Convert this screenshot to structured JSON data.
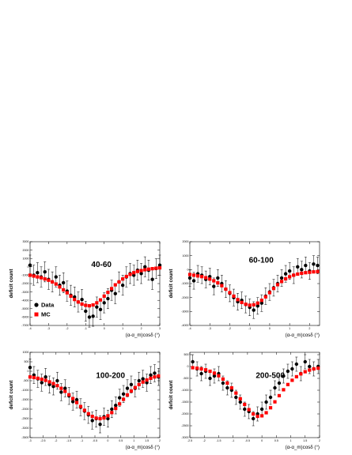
{
  "chart_data": [
    {
      "type": "scatter",
      "title": "40-60",
      "ylabel": "deficit count",
      "xlabel": "(α-α_m)cosδ (°)",
      "xlim": [
        -4,
        3
      ],
      "ylim": [
        -7000,
        3000
      ],
      "xticks": [
        -4,
        -3,
        -2,
        -1,
        0,
        1,
        2,
        3
      ],
      "yticks": [
        3000,
        2000,
        1000,
        0,
        -1000,
        -2000,
        -3000,
        -4000,
        -5000,
        -6000,
        -7000
      ],
      "legend": {
        "placement": "bottom-left",
        "entries": [
          "Data",
          "MC"
        ]
      },
      "series": [
        {
          "name": "Data",
          "color": "#000000",
          "marker": "circle",
          "x": [
            -4.0,
            -3.8,
            -3.6,
            -3.4,
            -3.2,
            -3.0,
            -2.8,
            -2.6,
            -2.4,
            -2.2,
            -2.0,
            -1.8,
            -1.6,
            -1.4,
            -1.2,
            -1.0,
            -0.8,
            -0.6,
            -0.4,
            -0.2,
            0.0,
            0.2,
            0.4,
            0.6,
            0.8,
            1.0,
            1.2,
            1.4,
            1.6,
            1.8,
            2.0,
            2.2,
            2.4,
            2.6,
            2.8,
            3.0
          ],
          "y": [
            200,
            -1000,
            -700,
            -1200,
            -600,
            -1500,
            -1800,
            -1200,
            -2200,
            -1900,
            -2900,
            -3400,
            -3600,
            -4200,
            -3900,
            -5300,
            -6000,
            -5900,
            -4800,
            -5100,
            -4300,
            -3800,
            -2800,
            -3200,
            -1800,
            -2200,
            -1200,
            -800,
            -1000,
            -400,
            -800,
            0,
            -400,
            -1500,
            -200,
            200
          ],
          "err": [
            1200,
            1200,
            1200,
            1200,
            1200,
            1200,
            1200,
            1200,
            1200,
            1200,
            1200,
            1200,
            1200,
            1200,
            1200,
            1200,
            1200,
            1200,
            1200,
            1200,
            1200,
            1200,
            1200,
            1200,
            1200,
            1200,
            1200,
            1200,
            1200,
            1200,
            1200,
            1200,
            1200,
            1200,
            1200,
            1200
          ]
        },
        {
          "name": "MC",
          "color": "#ff0000",
          "marker": "square",
          "x": [
            -4.0,
            -3.8,
            -3.6,
            -3.4,
            -3.2,
            -3.0,
            -2.8,
            -2.6,
            -2.4,
            -2.2,
            -2.0,
            -1.8,
            -1.6,
            -1.4,
            -1.2,
            -1.0,
            -0.8,
            -0.6,
            -0.4,
            -0.2,
            0.0,
            0.2,
            0.4,
            0.6,
            0.8,
            1.0,
            1.2,
            1.4,
            1.6,
            1.8,
            2.0,
            2.2,
            2.4,
            2.6,
            2.8,
            3.0
          ],
          "y": [
            -1000,
            -1100,
            -1200,
            -1300,
            -1450,
            -1600,
            -1800,
            -2050,
            -2400,
            -2750,
            -3100,
            -3500,
            -3900,
            -4200,
            -4450,
            -4600,
            -4650,
            -4550,
            -4300,
            -3950,
            -3500,
            -3050,
            -2600,
            -2150,
            -1800,
            -1450,
            -1150,
            -900,
            -700,
            -550,
            -450,
            -350,
            -280,
            -220,
            -170,
            -120
          ]
        }
      ]
    },
    {
      "type": "scatter",
      "title": "60-100",
      "ylabel": "deficit count",
      "xlabel": "(α-α_m)cosδ (°)",
      "xlim": [
        -4,
        2.5
      ],
      "ylim": [
        -4000,
        2000
      ],
      "xticks": [
        -4,
        -3,
        -2,
        -1,
        0,
        1,
        2
      ],
      "yticks": [
        2000,
        1000,
        0,
        -1000,
        -2000,
        -3000,
        -4000
      ],
      "series": [
        {
          "name": "Data",
          "color": "#000000",
          "marker": "circle",
          "x": [
            -4.0,
            -3.8,
            -3.6,
            -3.4,
            -3.2,
            -3.0,
            -2.8,
            -2.6,
            -2.4,
            -2.2,
            -2.0,
            -1.8,
            -1.6,
            -1.4,
            -1.2,
            -1.0,
            -0.8,
            -0.6,
            -0.4,
            -0.2,
            0.0,
            0.2,
            0.4,
            0.6,
            0.8,
            1.0,
            1.2,
            1.4,
            1.6,
            1.8,
            2.0,
            2.2,
            2.4
          ],
          "y": [
            -600,
            -800,
            -300,
            -400,
            -700,
            -500,
            -1200,
            -600,
            -1000,
            -1400,
            -1700,
            -2000,
            -2300,
            -2200,
            -2500,
            -2700,
            -2900,
            -2600,
            -2400,
            -1900,
            -1600,
            -1300,
            -1000,
            -600,
            -300,
            -100,
            -400,
            200,
            0,
            300,
            -100,
            400,
            300
          ],
          "err": [
            600,
            600,
            600,
            600,
            600,
            600,
            600,
            600,
            600,
            600,
            600,
            600,
            600,
            600,
            600,
            600,
            600,
            600,
            600,
            600,
            600,
            600,
            600,
            600,
            600,
            600,
            600,
            600,
            600,
            600,
            600,
            600,
            600
          ]
        },
        {
          "name": "MC",
          "color": "#ff0000",
          "marker": "square",
          "x": [
            -4.0,
            -3.8,
            -3.6,
            -3.4,
            -3.2,
            -3.0,
            -2.8,
            -2.6,
            -2.4,
            -2.2,
            -2.0,
            -1.8,
            -1.6,
            -1.4,
            -1.2,
            -1.0,
            -0.8,
            -0.6,
            -0.4,
            -0.2,
            0.0,
            0.2,
            0.4,
            0.6,
            0.8,
            1.0,
            1.2,
            1.4,
            1.6,
            1.8,
            2.0,
            2.2,
            2.4
          ],
          "y": [
            -350,
            -400,
            -450,
            -500,
            -580,
            -680,
            -800,
            -950,
            -1150,
            -1400,
            -1650,
            -1900,
            -2150,
            -2350,
            -2480,
            -2550,
            -2520,
            -2400,
            -2200,
            -1950,
            -1650,
            -1350,
            -1080,
            -850,
            -660,
            -510,
            -400,
            -320,
            -260,
            -220,
            -190,
            -160,
            -140
          ]
        }
      ]
    },
    {
      "type": "scatter",
      "title": "100-200",
      "ylabel": "deficit count",
      "xlabel": "(α-α_m)cosδ (°)",
      "xlim": [
        -3,
        2
      ],
      "ylim": [
        -3500,
        1000
      ],
      "xticks": [
        -3,
        -2.5,
        -2,
        -1.5,
        -1,
        -0.5,
        0,
        0.5,
        1,
        1.5,
        2
      ],
      "yticks": [
        1000,
        500,
        0,
        -500,
        -1000,
        -1500,
        -2000,
        -2500,
        -3000,
        -3500
      ],
      "series": [
        {
          "name": "Data",
          "color": "#000000",
          "marker": "circle",
          "x": [
            -3.0,
            -2.85,
            -2.7,
            -2.55,
            -2.4,
            -2.25,
            -2.1,
            -1.95,
            -1.8,
            -1.65,
            -1.5,
            -1.35,
            -1.2,
            -1.05,
            -0.9,
            -0.75,
            -0.6,
            -0.45,
            -0.3,
            -0.15,
            0.0,
            0.15,
            0.3,
            0.45,
            0.6,
            0.75,
            0.9,
            1.05,
            1.2,
            1.35,
            1.5,
            1.65,
            1.8,
            1.95
          ],
          "y": [
            200,
            -200,
            -400,
            -600,
            -300,
            -700,
            -800,
            -500,
            -1100,
            -900,
            -1300,
            -1600,
            -1500,
            -1900,
            -2100,
            -2300,
            -2600,
            -2500,
            -2800,
            -2400,
            -2500,
            -2000,
            -1800,
            -1400,
            -1200,
            -900,
            -700,
            -900,
            -500,
            -400,
            -600,
            -200,
            -100,
            -300
          ],
          "err": [
            450,
            450,
            450,
            450,
            450,
            450,
            450,
            450,
            450,
            450,
            450,
            450,
            450,
            450,
            450,
            450,
            450,
            450,
            450,
            450,
            450,
            450,
            450,
            450,
            450,
            450,
            450,
            450,
            450,
            450,
            450,
            450,
            450,
            450
          ]
        },
        {
          "name": "MC",
          "color": "#ff0000",
          "marker": "square",
          "x": [
            -3.0,
            -2.85,
            -2.7,
            -2.55,
            -2.4,
            -2.25,
            -2.1,
            -1.95,
            -1.8,
            -1.65,
            -1.5,
            -1.35,
            -1.2,
            -1.05,
            -0.9,
            -0.75,
            -0.6,
            -0.45,
            -0.3,
            -0.15,
            0.0,
            0.15,
            0.3,
            0.45,
            0.6,
            0.75,
            0.9,
            1.05,
            1.2,
            1.35,
            1.5,
            1.65,
            1.8,
            1.95
          ],
          "y": [
            -300,
            -330,
            -370,
            -420,
            -480,
            -560,
            -650,
            -760,
            -900,
            -1060,
            -1240,
            -1440,
            -1650,
            -1860,
            -2060,
            -2240,
            -2380,
            -2470,
            -2500,
            -2460,
            -2350,
            -2180,
            -1960,
            -1720,
            -1480,
            -1250,
            -1040,
            -860,
            -700,
            -570,
            -460,
            -370,
            -300,
            -250
          ]
        }
      ]
    },
    {
      "type": "scatter",
      "title": "200-500",
      "ylabel": "deficit count",
      "xlabel": "(α-α_m)cosδ (°)",
      "xlim": [
        -2.5,
        2
      ],
      "ylim": [
        -3000,
        600
      ],
      "xticks": [
        -2.5,
        -2,
        -1.5,
        -1,
        -0.5,
        0,
        0.5,
        1,
        1.5,
        2
      ],
      "yticks": [
        500,
        0,
        -500,
        -1000,
        -1500,
        -2000,
        -2500,
        -3000
      ],
      "series": [
        {
          "name": "Data",
          "color": "#000000",
          "marker": "circle",
          "x": [
            -2.4,
            -2.25,
            -2.1,
            -1.95,
            -1.8,
            -1.65,
            -1.5,
            -1.35,
            -1.2,
            -1.05,
            -0.9,
            -0.75,
            -0.6,
            -0.45,
            -0.3,
            -0.15,
            0.0,
            0.15,
            0.3,
            0.45,
            0.6,
            0.75,
            0.9,
            1.05,
            1.2,
            1.35,
            1.5,
            1.65,
            1.8,
            1.95
          ],
          "y": [
            200,
            -100,
            -300,
            -200,
            -500,
            -400,
            -300,
            -700,
            -900,
            -1000,
            -1300,
            -1500,
            -1800,
            -1900,
            -2200,
            -2000,
            -1800,
            -1500,
            -1300,
            -900,
            -700,
            -400,
            -200,
            -100,
            100,
            -300,
            200,
            0,
            -100,
            0
          ],
          "err": [
            300,
            300,
            300,
            300,
            300,
            300,
            300,
            300,
            300,
            300,
            300,
            300,
            300,
            300,
            300,
            300,
            300,
            300,
            300,
            300,
            300,
            300,
            300,
            300,
            300,
            300,
            300,
            300,
            300,
            300
          ]
        },
        {
          "name": "MC",
          "color": "#ff0000",
          "marker": "square",
          "x": [
            -2.4,
            -2.25,
            -2.1,
            -1.95,
            -1.8,
            -1.65,
            -1.5,
            -1.35,
            -1.2,
            -1.05,
            -0.9,
            -0.75,
            -0.6,
            -0.45,
            -0.3,
            -0.15,
            0.0,
            0.15,
            0.3,
            0.45,
            0.6,
            0.75,
            0.9,
            1.05,
            1.2,
            1.35,
            1.5,
            1.65,
            1.8,
            1.95
          ],
          "y": [
            -50,
            -70,
            -100,
            -140,
            -200,
            -280,
            -390,
            -530,
            -700,
            -900,
            -1120,
            -1360,
            -1600,
            -1820,
            -2000,
            -2100,
            -2080,
            -1950,
            -1740,
            -1490,
            -1230,
            -980,
            -760,
            -580,
            -430,
            -310,
            -220,
            -150,
            -100,
            -70
          ]
        }
      ]
    }
  ]
}
